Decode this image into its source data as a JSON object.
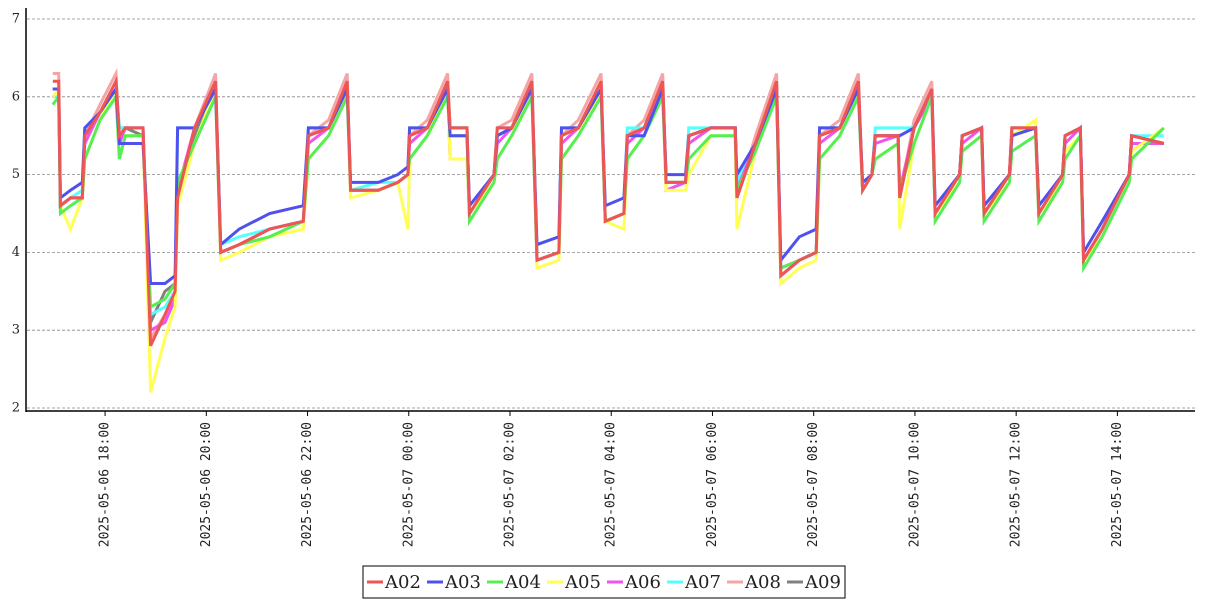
{
  "chart_data": {
    "type": "line",
    "grid": true,
    "legend": "bottom",
    "x": [
      "2025-05-06 16:58",
      "2025-05-06 17:05",
      "2025-05-06 17:07",
      "2025-05-06 17:19",
      "2025-05-06 17:33",
      "2025-05-06 17:36",
      "2025-05-06 17:54",
      "2025-05-06 18:13",
      "2025-05-06 18:17",
      "2025-05-06 18:24",
      "2025-05-06 18:45",
      "2025-05-06 18:54",
      "2025-05-06 19:11",
      "2025-05-06 19:23",
      "2025-05-06 19:26",
      "2025-05-06 19:46",
      "2025-05-06 20:11",
      "2025-05-06 20:17",
      "2025-05-06 20:39",
      "2025-05-06 21:15",
      "2025-05-06 21:55",
      "2025-05-06 22:01",
      "2025-05-06 22:25",
      "2025-05-06 22:47",
      "2025-05-06 22:51",
      "2025-05-06 23:24",
      "2025-05-06 23:47",
      "2025-05-06 23:59",
      "2025-05-07 00:01",
      "2025-05-07 00:22",
      "2025-05-07 00:46",
      "2025-05-07 00:49",
      "2025-05-07 01:09",
      "2025-05-07 01:12",
      "2025-05-07 01:41",
      "2025-05-07 01:45",
      "2025-05-07 02:02",
      "2025-05-07 02:26",
      "2025-05-07 02:32",
      "2025-05-07 02:58",
      "2025-05-07 03:01",
      "2025-05-07 03:21",
      "2025-05-07 03:48",
      "2025-05-07 03:53",
      "2025-05-07 04:15",
      "2025-05-07 04:19",
      "2025-05-07 04:39",
      "2025-05-07 05:01",
      "2025-05-07 05:05",
      "2025-05-07 05:28",
      "2025-05-07 05:32",
      "2025-05-07 05:58",
      "2025-05-07 06:27",
      "2025-05-07 06:29",
      "2025-05-07 06:51",
      "2025-05-07 07:16",
      "2025-05-07 07:21",
      "2025-05-07 07:43",
      "2025-05-07 08:03",
      "2025-05-07 08:07",
      "2025-05-07 08:31",
      "2025-05-07 08:53",
      "2025-05-07 08:58",
      "2025-05-07 09:09",
      "2025-05-07 09:13",
      "2025-05-07 09:40",
      "2025-05-07 09:42",
      "2025-05-07 09:59",
      "2025-05-07 10:20",
      "2025-05-07 10:24",
      "2025-05-07 10:53",
      "2025-05-07 10:56",
      "2025-05-07 11:19",
      "2025-05-07 11:22",
      "2025-05-07 11:52",
      "2025-05-07 11:55",
      "2025-05-07 12:23",
      "2025-05-07 12:27",
      "2025-05-07 12:55",
      "2025-05-07 12:58",
      "2025-05-07 13:16",
      "2025-05-07 13:20",
      "2025-05-07 13:42",
      "2025-05-07 14:14",
      "2025-05-07 14:17",
      "2025-05-07 14:55"
    ],
    "xlim": [
      "2025-05-06 16:31",
      "2025-05-07 15:32"
    ],
    "xticks": [
      "2025-05-06 18:00",
      "2025-05-06 20:00",
      "2025-05-06 22:00",
      "2025-05-07 00:00",
      "2025-05-07 02:00",
      "2025-05-07 04:00",
      "2025-05-07 06:00",
      "2025-05-07 08:00",
      "2025-05-07 10:00",
      "2025-05-07 12:00",
      "2025-05-07 14:00"
    ],
    "ylim": [
      2,
      7
    ],
    "yticks": [
      2,
      3,
      4,
      5,
      6,
      7
    ],
    "series": [
      {
        "name": "A02",
        "color": "#ee5555",
        "values": [
          6.2,
          6.2,
          4.6,
          4.7,
          4.7,
          5.5,
          5.8,
          6.2,
          5.5,
          5.6,
          5.6,
          2.8,
          3.2,
          3.5,
          4.7,
          5.6,
          6.2,
          4.0,
          4.1,
          4.3,
          4.4,
          5.5,
          5.6,
          6.2,
          4.8,
          4.8,
          4.9,
          5.0,
          5.5,
          5.6,
          6.2,
          5.6,
          5.6,
          4.5,
          5.0,
          5.6,
          5.6,
          6.2,
          3.9,
          4.0,
          5.5,
          5.6,
          6.2,
          4.4,
          4.5,
          5.5,
          5.6,
          6.2,
          4.9,
          4.9,
          5.5,
          5.6,
          5.6,
          4.7,
          5.4,
          6.2,
          3.7,
          3.9,
          4.0,
          5.5,
          5.6,
          6.2,
          4.8,
          5.0,
          5.5,
          5.5,
          4.7,
          5.6,
          6.1,
          4.5,
          5.0,
          5.5,
          5.6,
          4.5,
          5.0,
          5.6,
          5.6,
          4.5,
          5.0,
          5.5,
          5.6,
          3.9,
          4.3,
          5.0,
          5.5,
          5.4
        ]
      },
      {
        "name": "A03",
        "color": "#5050ee",
        "values": [
          6.1,
          6.1,
          4.7,
          4.8,
          4.9,
          5.6,
          5.8,
          6.1,
          5.4,
          5.4,
          5.4,
          3.6,
          3.6,
          3.7,
          5.6,
          5.6,
          6.1,
          4.1,
          4.3,
          4.5,
          4.6,
          5.6,
          5.6,
          6.1,
          4.9,
          4.9,
          5.0,
          5.1,
          5.6,
          5.6,
          6.1,
          5.5,
          5.5,
          4.6,
          5.0,
          5.5,
          5.6,
          6.1,
          4.1,
          4.2,
          5.6,
          5.6,
          6.1,
          4.6,
          4.7,
          5.5,
          5.5,
          6.1,
          5.0,
          5.0,
          5.5,
          5.6,
          5.6,
          5.0,
          5.4,
          6.1,
          3.9,
          4.2,
          4.3,
          5.6,
          5.6,
          6.1,
          4.9,
          5.0,
          5.5,
          5.5,
          5.5,
          5.6,
          6.1,
          4.6,
          5.0,
          5.5,
          5.6,
          4.6,
          5.0,
          5.5,
          5.6,
          4.6,
          5.0,
          5.5,
          5.6,
          4.0,
          4.4,
          5.0,
          5.5,
          5.4
        ]
      },
      {
        "name": "A04",
        "color": "#55ee55",
        "values": [
          5.9,
          6.0,
          4.5,
          4.6,
          4.7,
          5.2,
          5.7,
          6.0,
          5.2,
          5.5,
          5.5,
          3.3,
          3.4,
          3.6,
          4.9,
          5.4,
          6.0,
          4.0,
          4.1,
          4.2,
          4.4,
          5.2,
          5.5,
          6.0,
          4.8,
          4.8,
          4.9,
          5.0,
          5.2,
          5.5,
          6.0,
          5.5,
          5.5,
          4.4,
          4.9,
          5.2,
          5.5,
          6.0,
          3.9,
          4.0,
          5.2,
          5.5,
          6.0,
          4.4,
          4.5,
          5.2,
          5.5,
          6.0,
          4.9,
          4.9,
          5.2,
          5.5,
          5.5,
          4.8,
          5.3,
          6.0,
          3.8,
          3.9,
          4.0,
          5.2,
          5.5,
          6.0,
          4.8,
          5.0,
          5.2,
          5.4,
          4.8,
          5.4,
          6.0,
          4.4,
          4.9,
          5.3,
          5.5,
          4.4,
          4.9,
          5.3,
          5.5,
          4.4,
          4.9,
          5.2,
          5.5,
          3.8,
          4.2,
          4.9,
          5.2,
          5.6
        ]
      },
      {
        "name": "A05",
        "color": "#ffff55",
        "values": [
          6.0,
          6.1,
          4.6,
          4.3,
          4.7,
          5.2,
          5.7,
          6.1,
          5.2,
          5.5,
          5.5,
          2.2,
          2.9,
          3.3,
          4.6,
          5.4,
          6.1,
          3.9,
          4.0,
          4.2,
          4.3,
          5.2,
          5.5,
          6.1,
          4.7,
          4.8,
          4.9,
          4.3,
          5.2,
          5.5,
          6.1,
          5.2,
          5.2,
          4.5,
          4.9,
          5.2,
          5.5,
          6.1,
          3.8,
          3.9,
          5.2,
          5.5,
          6.1,
          4.4,
          4.3,
          5.2,
          5.5,
          6.1,
          4.8,
          4.8,
          5.0,
          5.5,
          5.5,
          4.3,
          5.3,
          6.1,
          3.6,
          3.8,
          3.9,
          5.2,
          5.5,
          6.1,
          4.8,
          5.0,
          5.2,
          5.4,
          4.3,
          5.4,
          6.0,
          4.5,
          4.9,
          5.3,
          5.5,
          4.5,
          4.9,
          5.5,
          5.7,
          4.5,
          4.9,
          5.3,
          5.5,
          3.9,
          4.2,
          4.9,
          5.3,
          5.6
        ]
      },
      {
        "name": "A06",
        "color": "#ee55ee",
        "values": [
          6.1,
          6.1,
          4.6,
          4.7,
          4.7,
          5.4,
          5.8,
          6.1,
          5.4,
          5.6,
          5.6,
          3.0,
          3.1,
          3.4,
          4.8,
          5.6,
          6.1,
          4.0,
          4.1,
          4.3,
          4.4,
          5.4,
          5.6,
          6.1,
          4.8,
          4.8,
          4.9,
          5.0,
          5.4,
          5.6,
          6.1,
          5.2,
          5.2,
          4.5,
          5.0,
          5.4,
          5.6,
          6.1,
          3.9,
          4.0,
          5.4,
          5.6,
          6.1,
          4.4,
          4.5,
          5.4,
          5.6,
          6.1,
          4.8,
          4.9,
          5.4,
          5.6,
          5.6,
          4.8,
          5.4,
          6.1,
          3.8,
          3.9,
          4.0,
          5.4,
          5.6,
          6.1,
          4.8,
          5.0,
          5.4,
          5.5,
          4.8,
          5.6,
          6.0,
          4.5,
          5.0,
          5.4,
          5.6,
          4.5,
          5.0,
          5.5,
          5.6,
          4.5,
          5.0,
          5.4,
          5.6,
          3.9,
          4.3,
          5.0,
          5.4,
          5.4
        ]
      },
      {
        "name": "A07",
        "color": "#55ffff",
        "values": [
          6.0,
          6.0,
          4.6,
          4.7,
          4.8,
          5.6,
          5.8,
          6.1,
          5.6,
          5.6,
          5.6,
          3.2,
          3.3,
          3.5,
          5.6,
          5.6,
          6.1,
          4.1,
          4.2,
          4.3,
          4.4,
          5.6,
          5.6,
          6.1,
          4.8,
          4.9,
          4.9,
          5.0,
          5.6,
          5.6,
          6.1,
          5.6,
          5.6,
          4.5,
          5.0,
          5.6,
          5.6,
          6.1,
          3.9,
          4.0,
          5.6,
          5.6,
          6.1,
          4.4,
          4.5,
          5.6,
          5.6,
          6.1,
          4.9,
          4.9,
          5.6,
          5.6,
          5.6,
          4.9,
          5.4,
          6.1,
          3.8,
          3.9,
          4.0,
          5.6,
          5.6,
          6.1,
          4.8,
          5.0,
          5.6,
          5.6,
          5.6,
          5.6,
          6.0,
          4.5,
          5.0,
          5.5,
          5.6,
          4.5,
          5.0,
          5.5,
          5.6,
          4.5,
          5.0,
          5.5,
          5.6,
          3.9,
          4.3,
          5.0,
          5.5,
          5.5
        ]
      },
      {
        "name": "A08",
        "color": "#f4a6a6",
        "values": [
          6.3,
          6.3,
          4.6,
          4.7,
          4.7,
          5.5,
          5.9,
          6.3,
          5.5,
          5.6,
          5.6,
          2.9,
          3.2,
          3.5,
          4.7,
          5.6,
          6.3,
          4.0,
          4.1,
          4.3,
          4.4,
          5.5,
          5.7,
          6.3,
          4.8,
          4.8,
          4.9,
          5.0,
          5.5,
          5.7,
          6.3,
          5.6,
          5.6,
          4.5,
          5.0,
          5.6,
          5.7,
          6.3,
          3.9,
          4.0,
          5.5,
          5.7,
          6.3,
          4.4,
          4.5,
          5.5,
          5.7,
          6.3,
          4.9,
          4.9,
          5.5,
          5.6,
          5.6,
          4.7,
          5.5,
          6.3,
          3.7,
          3.9,
          4.0,
          5.5,
          5.7,
          6.3,
          4.8,
          5.0,
          5.5,
          5.5,
          4.7,
          5.7,
          6.2,
          4.5,
          5.0,
          5.5,
          5.6,
          4.5,
          5.0,
          5.6,
          5.6,
          4.5,
          5.0,
          5.5,
          5.6,
          3.9,
          4.3,
          5.0,
          5.5,
          5.4
        ]
      },
      {
        "name": "A09",
        "color": "#808080",
        "values": [
          6.1,
          6.1,
          4.6,
          4.7,
          4.7,
          5.5,
          5.8,
          6.1,
          5.6,
          5.6,
          5.5,
          3.1,
          3.5,
          3.6,
          4.7,
          5.5,
          6.1,
          4.0,
          4.1,
          4.3,
          4.4,
          5.5,
          5.6,
          6.1,
          4.8,
          4.8,
          4.9,
          5.0,
          5.5,
          5.6,
          6.1,
          5.6,
          5.6,
          4.5,
          5.0,
          5.5,
          5.6,
          6.1,
          3.9,
          4.0,
          5.5,
          5.6,
          6.1,
          4.4,
          4.5,
          5.5,
          5.6,
          6.1,
          4.9,
          4.9,
          5.5,
          5.6,
          5.6,
          4.7,
          5.4,
          6.1,
          3.7,
          3.9,
          4.0,
          5.5,
          5.6,
          6.1,
          4.8,
          5.0,
          5.5,
          5.5,
          4.7,
          5.6,
          6.0,
          4.5,
          5.0,
          5.5,
          5.6,
          4.5,
          5.0,
          5.6,
          5.6,
          4.5,
          5.0,
          5.5,
          5.6,
          3.9,
          4.3,
          5.0,
          5.5,
          5.4
        ]
      }
    ]
  }
}
